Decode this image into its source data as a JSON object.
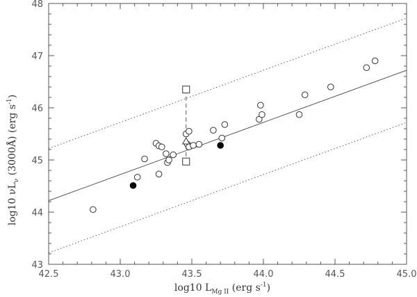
{
  "chart_data": {
    "type": "scatter",
    "xlabel": {
      "main": "log10 L",
      "sub": "Mg II",
      "unit": " (erg s",
      "sup": "-1",
      "close": ")"
    },
    "ylabel": {
      "main": "log10 νL",
      "sub": "ν",
      "unit": " (3000Å) (erg s",
      "sup": "-1",
      "close": ")"
    },
    "xlim": [
      42.5,
      45.0
    ],
    "ylim": [
      43.0,
      48.0
    ],
    "xticks": [
      "42.5",
      "43.0",
      "43.5",
      "44.0",
      "44.5",
      "45.0"
    ],
    "yticks": [
      "43",
      "44",
      "45",
      "46",
      "47",
      "48"
    ],
    "grid": false,
    "series": [
      {
        "marker": "open-circle",
        "points": [
          [
            42.81,
            44.05
          ],
          [
            43.12,
            44.67
          ],
          [
            43.17,
            45.02
          ],
          [
            43.25,
            45.32
          ],
          [
            43.27,
            45.27
          ],
          [
            43.27,
            44.73
          ],
          [
            43.29,
            45.25
          ],
          [
            43.32,
            45.12
          ],
          [
            43.33,
            44.95
          ],
          [
            43.34,
            45.0
          ],
          [
            43.37,
            45.1
          ],
          [
            43.46,
            45.5
          ],
          [
            43.47,
            45.3
          ],
          [
            43.48,
            45.55
          ],
          [
            43.48,
            45.25
          ],
          [
            43.51,
            45.28
          ],
          [
            43.55,
            45.3
          ],
          [
            43.65,
            45.57
          ],
          [
            43.71,
            45.42
          ],
          [
            43.73,
            45.68
          ],
          [
            43.97,
            45.78
          ],
          [
            43.98,
            46.05
          ],
          [
            43.99,
            45.87
          ],
          [
            44.25,
            45.87
          ],
          [
            44.29,
            46.25
          ],
          [
            44.47,
            46.4
          ],
          [
            44.72,
            46.77
          ],
          [
            44.78,
            46.9
          ]
        ]
      },
      {
        "marker": "filled-circle",
        "points": [
          [
            43.09,
            44.51
          ],
          [
            43.7,
            45.28
          ]
        ]
      },
      {
        "marker": "open-square",
        "points": [
          [
            43.46,
            46.35
          ],
          [
            43.46,
            44.97
          ]
        ]
      },
      {
        "marker": "open-triangle",
        "points": [
          [
            43.46,
            45.36
          ]
        ]
      }
    ],
    "fit_line": {
      "points": [
        [
          42.5,
          44.22
        ],
        [
          45.0,
          46.72
        ]
      ],
      "style": "solid"
    },
    "scatter_bounds": [
      {
        "points": [
          [
            42.5,
            45.22
          ],
          [
            45.0,
            47.72
          ]
        ],
        "style": "dotted"
      },
      {
        "points": [
          [
            42.5,
            43.22
          ],
          [
            45.0,
            45.72
          ]
        ],
        "style": "dotted"
      }
    ],
    "range_bar": {
      "points": [
        [
          43.46,
          46.35
        ],
        [
          43.46,
          44.97
        ]
      ],
      "style": "dashed"
    },
    "colors": {
      "axis": "#555555",
      "marker": "#333333",
      "line": "#555555"
    }
  }
}
